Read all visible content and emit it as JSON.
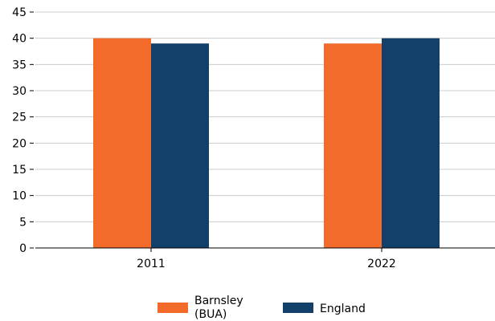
{
  "chart_data": {
    "type": "bar",
    "title": "",
    "xlabel": "",
    "ylabel": "",
    "categories": [
      "2011",
      "2022"
    ],
    "series": [
      {
        "name": "Barnsley (BUA)",
        "values": [
          40,
          39
        ]
      },
      {
        "name": "England",
        "values": [
          39,
          40
        ]
      }
    ],
    "ylim": [
      0,
      45
    ],
    "yticks": [
      0,
      5,
      10,
      15,
      20,
      25,
      30,
      35,
      40,
      45
    ],
    "grid": "horizontal",
    "legend_position": "bottom-center",
    "colors": {
      "Barnsley (BUA)": "#f26b2b",
      "England": "#12406b"
    }
  },
  "legend": {
    "items": [
      {
        "line1": "Barnsley",
        "line2": "(BUA)"
      },
      {
        "line1": "England",
        "line2": ""
      }
    ]
  }
}
